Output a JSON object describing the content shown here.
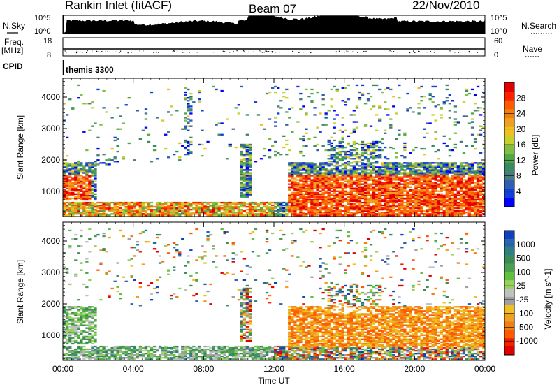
{
  "header": {
    "station": "Rankin Inlet (fitACF)",
    "beam": "Beam 07",
    "date": "22/Nov/2010"
  },
  "nsky_panel": {
    "left_label": "N.Sky",
    "right_label": "N.Search",
    "left_ticks": [
      "10^5",
      "10^0"
    ],
    "right_ticks": [
      "10^5",
      "10^0"
    ]
  },
  "freq_panel": {
    "left_label_1": "Freq.",
    "left_label_2": "[MHz]",
    "right_label": "Nave",
    "left_ticks": [
      "18",
      "8"
    ],
    "right_ticks": [
      "60",
      "0"
    ]
  },
  "cpid_panel": {
    "label": "CPID",
    "text": "themis 3300"
  },
  "chart_data": [
    {
      "type": "heatmap",
      "name": "power",
      "ylabel": "Slant Range [km]",
      "y_ticks": [
        1000,
        2000,
        3000,
        4000
      ],
      "ylim": [
        200,
        4600
      ],
      "colorbar_label": "Power [dB]",
      "colorbar_ticks": [
        4,
        8,
        12,
        16,
        20,
        24,
        28
      ],
      "colorbar_range": [
        0,
        32
      ],
      "colorbar_colors": [
        "#0000ff",
        "#1040d8",
        "#2f5fb0",
        "#4a7a80",
        "#3a8a60",
        "#52a848",
        "#80c040",
        "#c8d030",
        "#f0c020",
        "#f0a020",
        "#f08010",
        "#ff5a00",
        "#ff2000",
        "#e00000"
      ],
      "x_ticks": [
        "00:00",
        "04:00",
        "08:00",
        "12:00",
        "16:00",
        "20:00",
        "00:00"
      ],
      "xlim_hours": [
        0,
        24
      ]
    },
    {
      "type": "heatmap",
      "name": "velocity",
      "ylabel": "Slant Range [km]",
      "xlabel": "Time UT",
      "y_ticks": [
        1000,
        2000,
        3000,
        4000
      ],
      "ylim": [
        200,
        4600
      ],
      "colorbar_label": "Velocity [m s^-1]",
      "colorbar_ticks": [
        "1000",
        "500",
        "100",
        "25",
        "-25",
        "-100",
        "-500",
        "-1000"
      ],
      "colorbar_colors": [
        "#1040c0",
        "#2a66b0",
        "#2f7f7f",
        "#3a8a55",
        "#4aa050",
        "#60c040",
        "#9ad060",
        "#c0c0c0",
        "#a0a0a0",
        "#f0c020",
        "#f0a020",
        "#f08010",
        "#ff5a00",
        "#f02000",
        "#e00000"
      ],
      "x_ticks": [
        "00:00",
        "04:00",
        "08:00",
        "12:00",
        "16:00",
        "20:00",
        "00:00"
      ],
      "xlim_hours": [
        0,
        24
      ]
    }
  ]
}
